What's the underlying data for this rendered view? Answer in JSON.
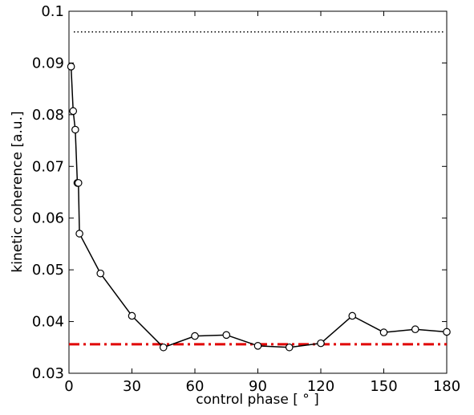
{
  "chart_data": {
    "type": "line",
    "title": "",
    "xlabel": "control phase [ ° ]",
    "ylabel": "kinetic coherence [a.u.]",
    "xlim": [
      0,
      180
    ],
    "ylim": [
      0.03,
      0.1
    ],
    "xticks": [
      0,
      30,
      60,
      90,
      120,
      150,
      180
    ],
    "yticks": [
      0.03,
      0.04,
      0.05,
      0.06,
      0.07,
      0.08,
      0.09,
      0.1
    ],
    "xtick_labels": [
      "0",
      "30",
      "60",
      "90",
      "120",
      "150",
      "180"
    ],
    "ytick_labels": [
      "0.03",
      "0.04",
      "0.05",
      "0.06",
      "0.07",
      "0.08",
      "0.09",
      "0.1"
    ],
    "grid": false,
    "legend": "none",
    "series": [
      {
        "style": "solid line with open circle markers",
        "color": "#000000",
        "x": [
          1,
          2,
          3,
          4,
          4.5,
          5,
          15,
          30,
          45,
          60,
          75,
          90,
          105,
          120,
          135,
          150,
          165,
          180
        ],
        "y": [
          0.0893,
          0.0807,
          0.0771,
          0.0668,
          0.0668,
          0.057,
          0.0493,
          0.0411,
          0.035,
          0.0372,
          0.0374,
          0.0353,
          0.035,
          0.0358,
          0.0411,
          0.0379,
          0.0385,
          0.038
        ]
      }
    ],
    "reference_lines": [
      {
        "style": "dotted",
        "color": "#000000",
        "y": 0.096
      },
      {
        "style": "dash-dot",
        "color": "#e00000",
        "y": 0.0356
      }
    ]
  }
}
